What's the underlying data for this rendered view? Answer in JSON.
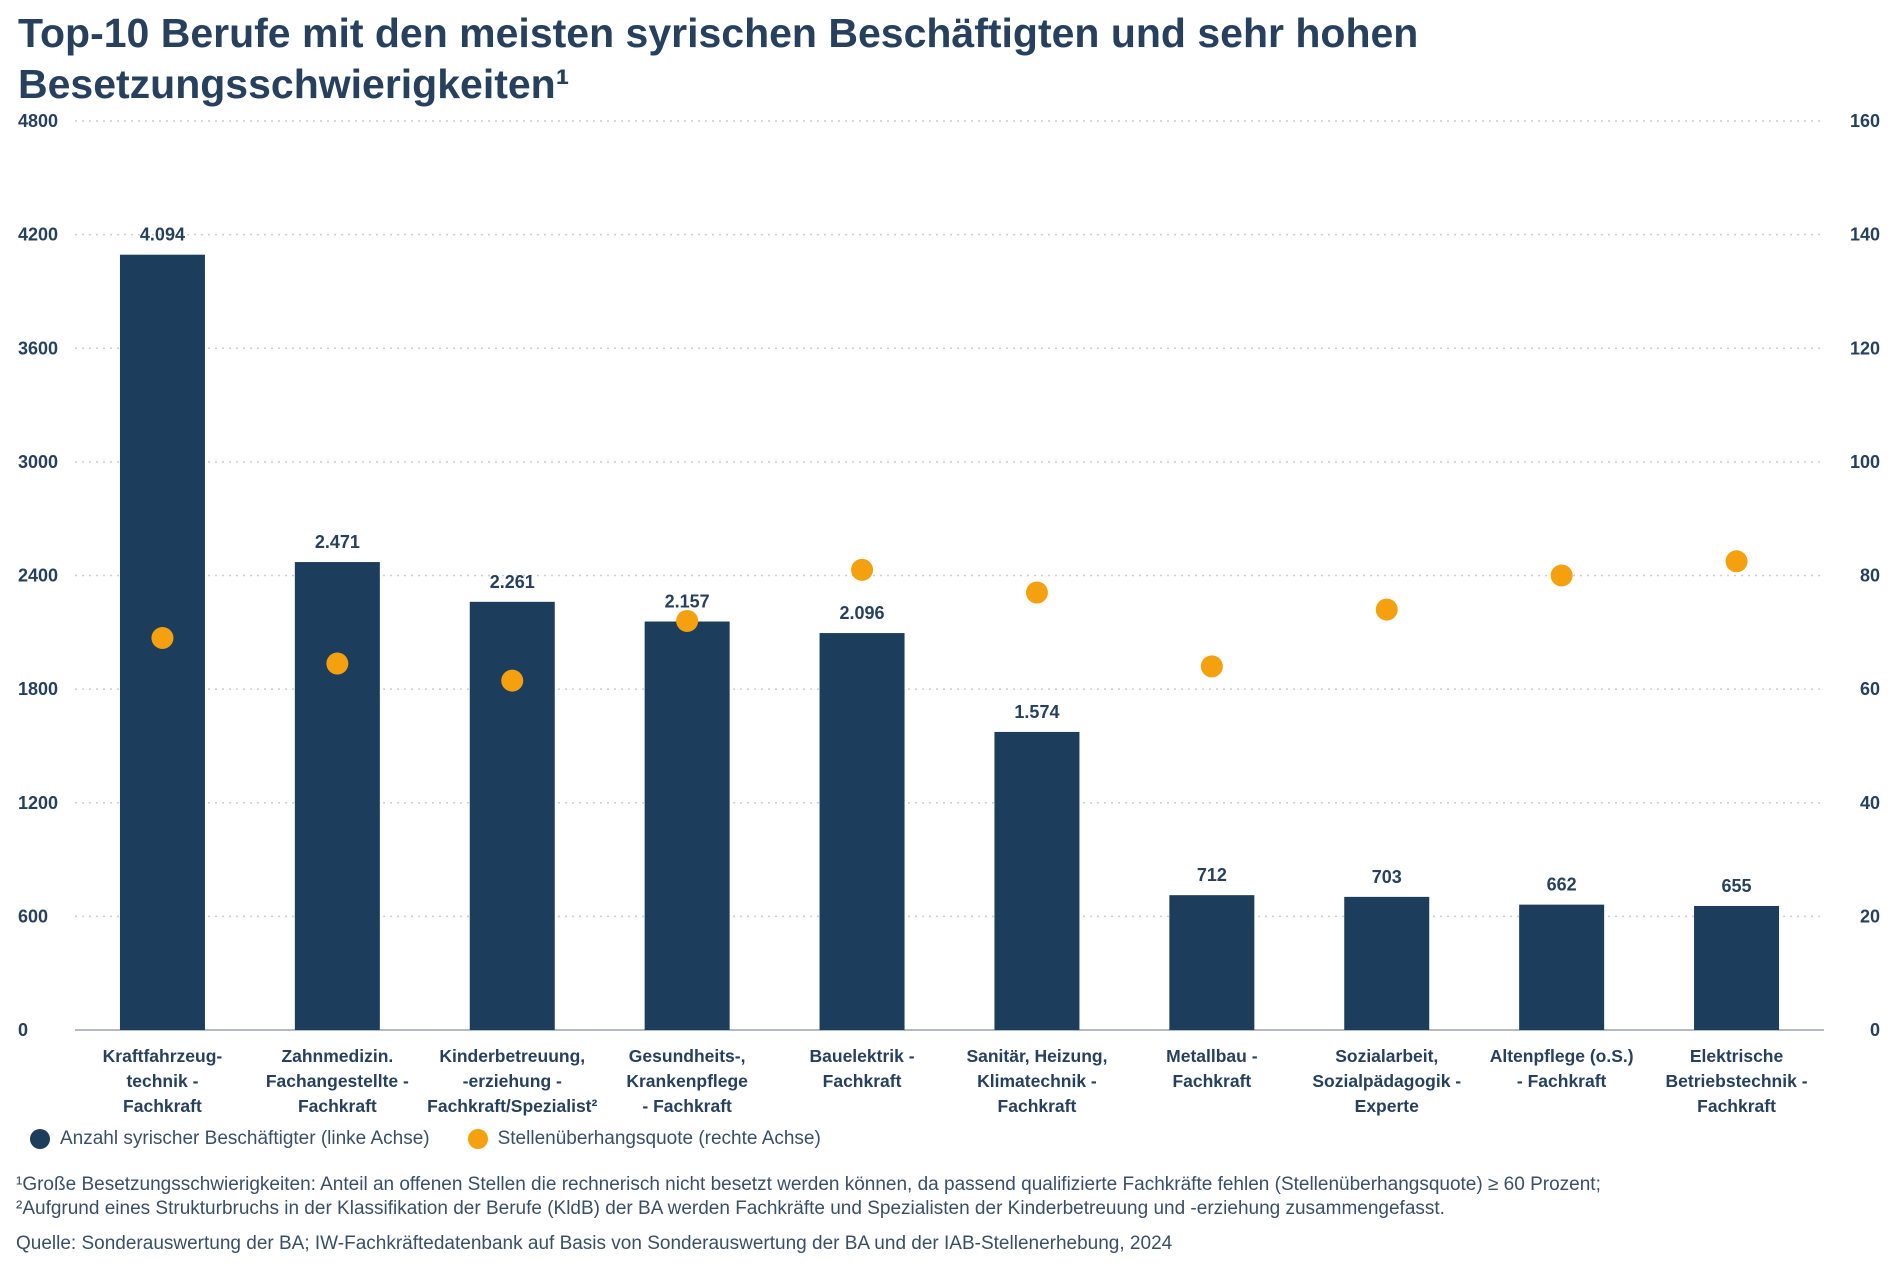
{
  "chart_data": {
    "type": "bar",
    "title": "Top-10 Berufe mit den meisten syrischen Beschäftigten und sehr hohen Besetzungsschwierigkeiten¹",
    "categories": [
      [
        "Kraftfahrzeug-",
        "technik -",
        "Fachkraft"
      ],
      [
        "Zahnmedizin.",
        "Fachangestellte -",
        "Fachkraft"
      ],
      [
        "Kinderbetreuung,",
        "-erziehung -",
        "Fachkraft/Spezialist²"
      ],
      [
        "Gesundheits-,",
        "Krankenpflege",
        "- Fachkraft"
      ],
      [
        "Bauelektrik -",
        "Fachkraft"
      ],
      [
        "Sanitär, Heizung,",
        "Klimatechnik -",
        "Fachkraft"
      ],
      [
        "Metallbau -",
        "Fachkraft"
      ],
      [
        "Sozialarbeit,",
        "Sozialpädagogik -",
        "Experte"
      ],
      [
        "Altenpflege (o.S.)",
        "- Fachkraft"
      ],
      [
        "Elektrische",
        "Betriebstechnik -",
        "Fachkraft"
      ]
    ],
    "series": [
      {
        "name": "Anzahl syrischer Beschäftigter (linke Achse)",
        "type": "bar",
        "axis": "left",
        "color": "#1d3d5c",
        "values": [
          4094,
          2471,
          2261,
          2157,
          2096,
          1574,
          712,
          703,
          662,
          655
        ],
        "labels": [
          "4.094",
          "2.471",
          "2.261",
          "2.157",
          "2.096",
          "1.574",
          "712",
          "703",
          "662",
          "655"
        ]
      },
      {
        "name": "Stellenüberhangsquote (rechte Achse)",
        "type": "scatter",
        "axis": "right",
        "color": "#f5a00f",
        "values": [
          69,
          64.5,
          61.5,
          72,
          81,
          77,
          64,
          74,
          80,
          82.5
        ]
      }
    ],
    "y_left": {
      "range": [
        0,
        4800
      ],
      "ticks": [
        "0",
        "600",
        "1200",
        "1800",
        "2400",
        "3000",
        "3600",
        "4200",
        "4800"
      ]
    },
    "y_right": {
      "range": [
        0,
        160
      ],
      "ticks": [
        "0",
        "20",
        "40",
        "60",
        "80",
        "100",
        "120",
        "140",
        "160"
      ]
    },
    "grid": true,
    "legend_position": "bottom-left"
  },
  "footnotes": [
    "¹Große Besetzungsschwierigkeiten: Anteil an offenen Stellen die rechnerisch nicht besetzt werden können, da passend qualifizierte Fachkräfte fehlen (Stellenüberhangsquote) ≥ 60 Prozent;",
    "²Aufgrund eines Strukturbruchs in der Klassifikation der Berufe (KldB) der BA werden Fachkräfte und Spezialisten der Kinderbetreuung und -erziehung zusammengefasst."
  ],
  "source": "Quelle: Sonderauswertung der BA; IW-Fachkräftedatenbank auf Basis von Sonderauswertung der BA und der IAB-Stellenerhebung, 2024"
}
